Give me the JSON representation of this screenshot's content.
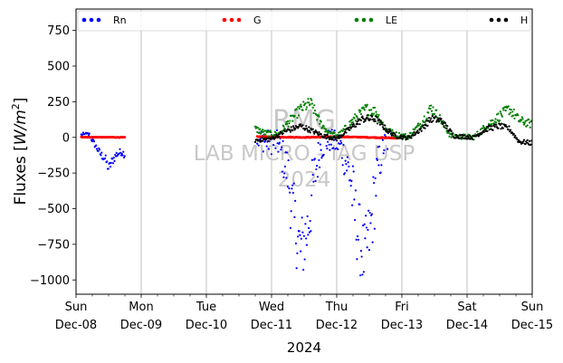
{
  "chart_data": {
    "type": "scatter",
    "ylabel_main": "Fluxes [",
    "ylabel_math": "W/m",
    "ylabel_sup": "2",
    "ylabel_end": "]",
    "xlabel": "2024",
    "ylim": [
      -1100,
      900
    ],
    "yticks": [
      750,
      500,
      250,
      0,
      -250,
      -500,
      -750,
      -1000
    ],
    "xlim_days": [
      0,
      7
    ],
    "xticks": [
      {
        "day": 0,
        "weekday": "Sun",
        "date": "Dec-08"
      },
      {
        "day": 1,
        "weekday": "Mon",
        "date": "Dec-09"
      },
      {
        "day": 2,
        "weekday": "Tue",
        "date": "Dec-10"
      },
      {
        "day": 3,
        "weekday": "Wed",
        "date": "Dec-11"
      },
      {
        "day": 4,
        "weekday": "Thu",
        "date": "Dec-12"
      },
      {
        "day": 5,
        "weekday": "Fri",
        "date": "Dec-13"
      },
      {
        "day": 6,
        "weekday": "Sat",
        "date": "Dec-14"
      },
      {
        "day": 7,
        "weekday": "Sun",
        "date": "Dec-15"
      }
    ],
    "grid": "vertical",
    "legend_position": "top",
    "watermark": [
      "RMG",
      "LAB MICRO - IAG USP",
      "2024"
    ],
    "series": [
      {
        "name": "Rn",
        "color": "#0000ff",
        "visible": true,
        "segments": [
          {
            "t0": 0.08,
            "t1": 0.75,
            "profile": [
              [
                0.08,
                15
              ],
              [
                0.2,
                20
              ],
              [
                0.3,
                -60
              ],
              [
                0.38,
                -120
              ],
              [
                0.45,
                -150
              ],
              [
                0.5,
                -220
              ],
              [
                0.55,
                -170
              ],
              [
                0.62,
                -120
              ],
              [
                0.7,
                -100
              ],
              [
                0.75,
                -120
              ]
            ],
            "spread": 40
          },
          {
            "t0": 2.78,
            "t1": 4.8,
            "profile": [
              [
                2.78,
                -10
              ],
              [
                2.95,
                -30
              ],
              [
                3.1,
                -40
              ],
              [
                3.25,
                -250
              ],
              [
                3.35,
                -600
              ],
              [
                3.45,
                -800
              ],
              [
                3.55,
                -650
              ],
              [
                3.65,
                -300
              ],
              [
                3.75,
                -70
              ],
              [
                3.88,
                -20
              ],
              [
                4.05,
                -50
              ],
              [
                4.2,
                -250
              ],
              [
                4.3,
                -600
              ],
              [
                4.42,
                -850
              ],
              [
                4.52,
                -650
              ],
              [
                4.62,
                -250
              ],
              [
                4.72,
                -60
              ],
              [
                4.8,
                -20
              ]
            ],
            "spread": 180
          }
        ]
      },
      {
        "name": "G",
        "color": "#ff0000",
        "visible": true,
        "segments": [
          {
            "t0": 0.08,
            "t1": 0.75,
            "profile": [
              [
                0.08,
                2
              ],
              [
                0.75,
                0
              ]
            ],
            "spread": 4
          },
          {
            "t0": 2.78,
            "t1": 4.95,
            "profile": [
              [
                2.78,
                5
              ],
              [
                3.5,
                0
              ],
              [
                4.0,
                5
              ],
              [
                4.5,
                0
              ],
              [
                4.95,
                -5
              ]
            ],
            "spread": 6
          }
        ]
      },
      {
        "name": "LE",
        "color": "#008000",
        "visible": true,
        "segments": [
          {
            "t0": 2.75,
            "t1": 7.0,
            "profile": [
              [
                2.75,
                60
              ],
              [
                2.9,
                30
              ],
              [
                3.1,
                20
              ],
              [
                3.25,
                100
              ],
              [
                3.45,
                200
              ],
              [
                3.6,
                240
              ],
              [
                3.75,
                100
              ],
              [
                3.9,
                20
              ],
              [
                4.05,
                20
              ],
              [
                4.25,
                120
              ],
              [
                4.45,
                200
              ],
              [
                4.6,
                180
              ],
              [
                4.75,
                60
              ],
              [
                4.9,
                20
              ],
              [
                5.1,
                5
              ],
              [
                5.3,
                100
              ],
              [
                5.45,
                210
              ],
              [
                5.6,
                120
              ],
              [
                5.75,
                10
              ],
              [
                6.1,
                0
              ],
              [
                6.3,
                80
              ],
              [
                6.5,
                150
              ],
              [
                6.65,
                200
              ],
              [
                6.8,
                120
              ],
              [
                7.0,
                90
              ]
            ],
            "spread": 45
          }
        ]
      },
      {
        "name": "H",
        "color": "#000000",
        "visible": true,
        "segments": [
          {
            "t0": 2.75,
            "t1": 7.0,
            "profile": [
              [
                2.75,
                -20
              ],
              [
                3.0,
                -10
              ],
              [
                3.2,
                40
              ],
              [
                3.45,
                80
              ],
              [
                3.6,
                50
              ],
              [
                3.8,
                10
              ],
              [
                4.0,
                -10
              ],
              [
                4.2,
                60
              ],
              [
                4.4,
                130
              ],
              [
                4.6,
                130
              ],
              [
                4.75,
                60
              ],
              [
                4.9,
                10
              ],
              [
                5.1,
                -5
              ],
              [
                5.3,
                60
              ],
              [
                5.45,
                130
              ],
              [
                5.6,
                120
              ],
              [
                5.8,
                10
              ],
              [
                6.1,
                0
              ],
              [
                6.3,
                60
              ],
              [
                6.5,
                80
              ],
              [
                6.65,
                60
              ],
              [
                6.8,
                -30
              ],
              [
                7.0,
                -40
              ]
            ],
            "spread": 35
          }
        ]
      }
    ]
  }
}
